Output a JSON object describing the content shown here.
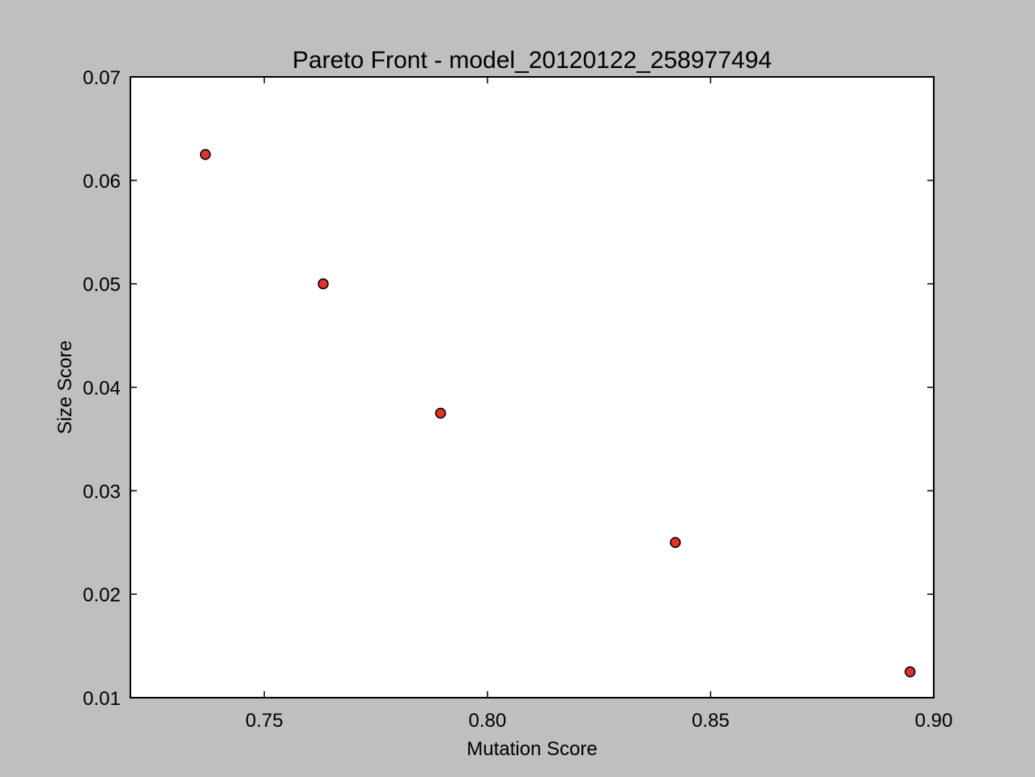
{
  "chart_data": {
    "type": "scatter",
    "title": "Pareto Front - model_20120122_258977494",
    "xlabel": "Mutation Score",
    "ylabel": "Size Score",
    "xlim": [
      0.72,
      0.9
    ],
    "ylim": [
      0.01,
      0.07
    ],
    "xticks": [
      {
        "value": 0.75,
        "label": "0.75"
      },
      {
        "value": 0.8,
        "label": "0.80"
      },
      {
        "value": 0.85,
        "label": "0.85"
      },
      {
        "value": 0.9,
        "label": "0.90"
      }
    ],
    "yticks": [
      {
        "value": 0.01,
        "label": "0.01"
      },
      {
        "value": 0.02,
        "label": "0.02"
      },
      {
        "value": 0.03,
        "label": "0.03"
      },
      {
        "value": 0.04,
        "label": "0.04"
      },
      {
        "value": 0.05,
        "label": "0.05"
      },
      {
        "value": 0.06,
        "label": "0.06"
      },
      {
        "value": 0.07,
        "label": "0.07"
      }
    ],
    "points": [
      {
        "x": 0.7368,
        "y": 0.0625
      },
      {
        "x": 0.7632,
        "y": 0.05
      },
      {
        "x": 0.7895,
        "y": 0.0375
      },
      {
        "x": 0.8421,
        "y": 0.025
      },
      {
        "x": 0.8947,
        "y": 0.0125
      }
    ],
    "grid": false,
    "legend": "none"
  },
  "colors": {
    "figure_background": "#bfbfbf",
    "plot_background": "#ffffff",
    "marker_fill": "#e0342a",
    "marker_edge": "#000000",
    "axis": "#000000"
  }
}
